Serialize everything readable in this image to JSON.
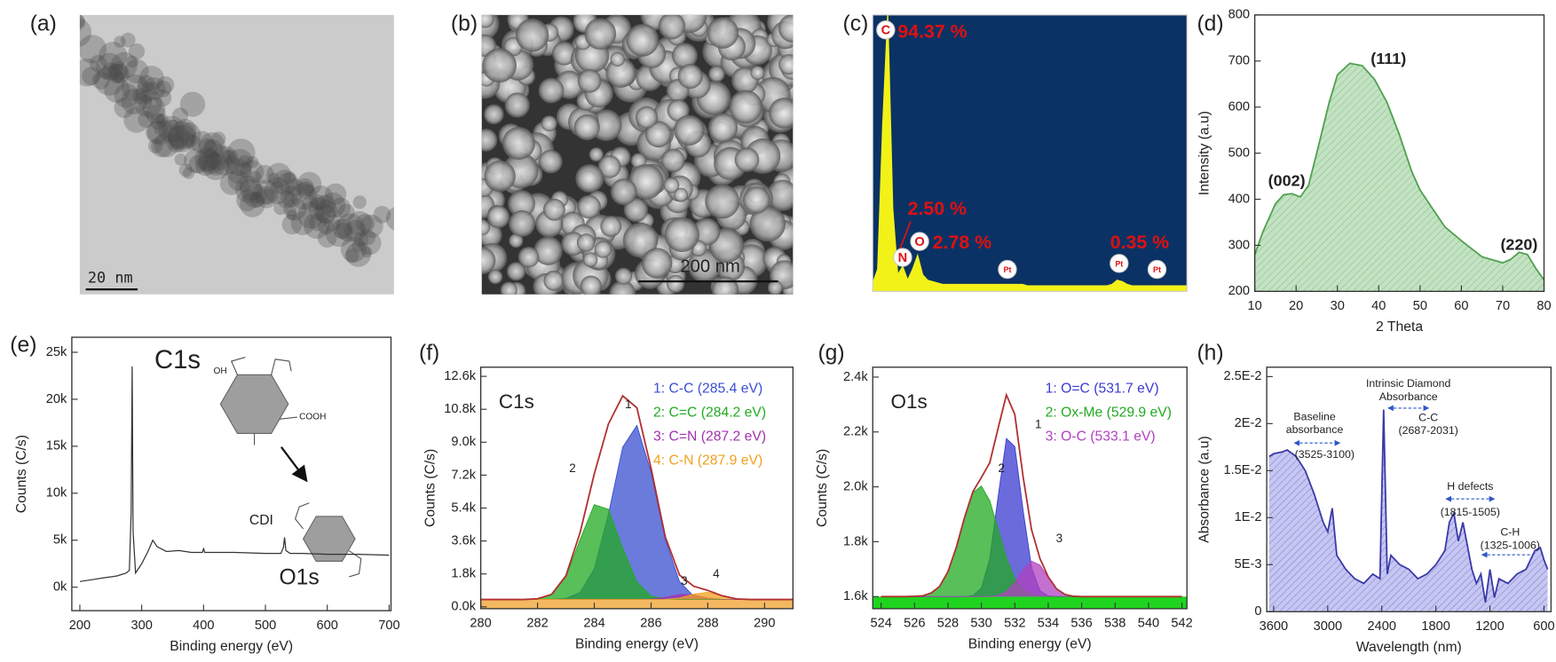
{
  "images": [
    {
      "panel_label": "(a)",
      "scale_bar": "20 nm"
    },
    {
      "panel_label": "(b)",
      "scale_bar": "200 nm"
    }
  ],
  "chart_data": [
    {
      "type": "spectrum",
      "panel_label": "(c)",
      "background": "#0b3265",
      "color": "#f2f218",
      "values": [
        3,
        8,
        60,
        100,
        30,
        6,
        9,
        4,
        8,
        13,
        6,
        4,
        3.5,
        3,
        2.5,
        2.5,
        2.5,
        2.5,
        2.5,
        2.5,
        2.5,
        2.5,
        2.5,
        2.5,
        2.5,
        2.5,
        2.5,
        2.5,
        2.5,
        2.5,
        2.5,
        2,
        2,
        2,
        2,
        2,
        2,
        2,
        2,
        2,
        2,
        2,
        2,
        2,
        2,
        2,
        2,
        2,
        2.5,
        4,
        3.5,
        2.5,
        2,
        2,
        2,
        2,
        2,
        2,
        2,
        2,
        2,
        2,
        2,
        2
      ],
      "peaks": [
        {
          "element": "C",
          "label": "94.37 %"
        },
        {
          "element": "N",
          "label": "2.50 %"
        },
        {
          "element": "O",
          "label": "2.78 %"
        },
        {
          "element": "Pt"
        },
        {
          "element": "Pt",
          "label": "0.35 %"
        },
        {
          "element": "Pt"
        }
      ]
    },
    {
      "type": "area",
      "panel_label": "(d)",
      "x_label": "2 Theta",
      "y_label": "Intensity (a.u)",
      "x": [
        10,
        12,
        15,
        17,
        19,
        21,
        23,
        25,
        28,
        30,
        33,
        36,
        39,
        42,
        45,
        48,
        50,
        53,
        56,
        60,
        65,
        70,
        72,
        74,
        76,
        78,
        80
      ],
      "values": [
        280,
        330,
        390,
        410,
        412,
        405,
        430,
        500,
        610,
        670,
        695,
        690,
        660,
        610,
        540,
        460,
        420,
        380,
        340,
        310,
        275,
        262,
        270,
        285,
        280,
        250,
        225
      ],
      "color": "#4fa04f",
      "fill": "#c3e2c3",
      "xlim": [
        10,
        80
      ],
      "ylim": [
        200,
        800
      ],
      "xticks": [
        10,
        20,
        30,
        40,
        50,
        60,
        70,
        80
      ],
      "yticks": [
        200,
        300,
        400,
        500,
        600,
        700,
        800
      ],
      "annotations": [
        "(002)",
        "(111)",
        "(220)"
      ]
    },
    {
      "type": "line",
      "panel_label": "(e)",
      "x_label": "Binding energy (eV)",
      "y_label": "Counts (C/s)",
      "x": [
        200,
        220,
        240,
        260,
        275,
        280,
        283,
        284.5,
        286,
        290,
        300,
        310,
        318,
        325,
        340,
        360,
        380,
        398,
        400,
        402,
        420,
        450,
        500,
        525,
        529,
        531,
        533,
        540,
        560,
        600,
        650,
        700
      ],
      "values": [
        600,
        800,
        1000,
        1200,
        1500,
        1800,
        8000,
        23500,
        6000,
        1500,
        2500,
        3800,
        5000,
        4300,
        3800,
        3900,
        3700,
        3700,
        4100,
        3700,
        3700,
        3700,
        3600,
        3600,
        4200,
        5300,
        3900,
        3600,
        3600,
        3500,
        3500,
        3400
      ],
      "color": "#333333",
      "xlim": [
        187,
        703
      ],
      "ylim": [
        -2500,
        26600
      ],
      "xticks": [
        200,
        300,
        400,
        500,
        600,
        700
      ],
      "yticks": [
        {
          "value": 0,
          "label": "0k"
        },
        {
          "value": 5000,
          "label": "5k"
        },
        {
          "value": 10000,
          "label": "10k"
        },
        {
          "value": 15000,
          "label": "15k"
        },
        {
          "value": 20000,
          "label": "20k"
        },
        {
          "value": 25000,
          "label": "25k"
        }
      ],
      "annotations": [
        "C1s",
        "O1s"
      ],
      "schematic_labels": [
        "OH",
        "COOH",
        "CDI"
      ]
    },
    {
      "type": "peak_fit",
      "panel_label": "(f)",
      "title": "C1s",
      "x_label": "Binding energy (eV)",
      "y_label": "Counts (C/s)",
      "x": [
        280,
        280.5,
        281,
        281.5,
        282,
        282.5,
        283,
        283.5,
        284,
        284.5,
        285,
        285.5,
        286,
        286.5,
        287,
        287.5,
        288,
        288.5,
        289,
        289.5,
        290,
        290.5,
        291
      ],
      "series": [
        {
          "name": "1: C-C (285.4 eV)",
          "color": "#3a4fd0",
          "values": [
            400,
            400,
            400,
            400,
            400,
            405,
            457,
            788,
            2083,
            5072,
            8725,
            9915,
            7370,
            3675,
            1386,
            590,
            424,
            402,
            400,
            400,
            400,
            400,
            400
          ]
        },
        {
          "name": "2: C=C (284.2 eV)",
          "color": "#22aa22",
          "values": [
            400,
            400,
            400,
            403,
            439,
            683,
            1643,
            3675,
            5584,
            5326,
            3210,
            1363,
            598,
            424,
            400,
            400,
            400,
            400,
            400,
            400,
            400,
            400,
            400
          ]
        },
        {
          "name": "3: C=N (287.2 eV)",
          "color": "#a030b0",
          "values": [
            400,
            400,
            400,
            400,
            400,
            400,
            400,
            400,
            400,
            400,
            400,
            400,
            417,
            513,
            677,
            650,
            483,
            410,
            400,
            400,
            400,
            400,
            400
          ]
        },
        {
          "name": "4: C-N (287.9 eV)",
          "color": "#f0a020",
          "values": [
            400,
            400,
            400,
            400,
            400,
            400,
            400,
            400,
            400,
            400,
            400,
            400,
            400,
            408,
            479,
            690,
            792,
            595,
            436,
            402,
            400,
            400,
            400
          ]
        }
      ],
      "envelope": {
        "color": "#b03030",
        "values": [
          400,
          400,
          400,
          403,
          439,
          688,
          1700,
          4063,
          7267,
          9998,
          11535,
          10878,
          7585,
          3820,
          1742,
          1130,
          899,
          607,
          436,
          402,
          400,
          400,
          400
        ]
      },
      "baseline": 400,
      "baseline_color": "#f4b860",
      "xlim": [
        280,
        291
      ],
      "ylim": [
        -100,
        13100
      ],
      "xticks": [
        280,
        282,
        284,
        286,
        288,
        290
      ],
      "yticks": [
        {
          "value": 0,
          "label": "0.0k"
        },
        {
          "value": 1800,
          "label": "1.8k"
        },
        {
          "value": 3600,
          "label": "3.6k"
        },
        {
          "value": 5400,
          "label": "5.4k"
        },
        {
          "value": 7200,
          "label": "7.2k"
        },
        {
          "value": 9000,
          "label": "9.0k"
        },
        {
          "value": 10800,
          "label": "10.8k"
        },
        {
          "value": 12600,
          "label": "12.6k"
        }
      ],
      "peak_labels": [
        "1",
        "2",
        "3",
        "4"
      ]
    },
    {
      "type": "peak_fit",
      "panel_label": "(g)",
      "title": "O1s",
      "x_label": "Binding energy (eV)",
      "y_label": "Counts (C/s)",
      "x": [
        524,
        524.5,
        525,
        525.5,
        526,
        526.5,
        527,
        527.5,
        528,
        528.5,
        529,
        529.5,
        530,
        530.5,
        531,
        531.5,
        532,
        532.5,
        533,
        533.5,
        534,
        534.5,
        535,
        535.5,
        536,
        536.5,
        537,
        537.5,
        538,
        538.5,
        539,
        539.5,
        540,
        540.5,
        541,
        541.5,
        542
      ],
      "series": [
        {
          "name": "1: O=C (531.7 eV)",
          "color": "#3a3ad0",
          "values": [
            1600,
            1600,
            1600,
            1600,
            1600,
            1600,
            1600,
            1600,
            1600,
            1600,
            1600,
            1604,
            1631,
            1738,
            1964,
            2176,
            2147,
            1912,
            1707,
            1622,
            1603,
            1600,
            1600,
            1600,
            1600,
            1600,
            1600,
            1600,
            1600,
            1600,
            1600,
            1600,
            1600,
            1600,
            1600,
            1600,
            1600
          ]
        },
        {
          "name": "2: Ox-Me (529.9 eV)",
          "color": "#22aa22",
          "values": [
            1600,
            1600,
            1600,
            1600,
            1601,
            1603,
            1613,
            1637,
            1691,
            1780,
            1890,
            1979,
            2003,
            1949,
            1846,
            1741,
            1666,
            1625,
            1608,
            1602,
            1600,
            1600,
            1600,
            1600,
            1600,
            1600,
            1600,
            1600,
            1600,
            1600,
            1600,
            1600,
            1600,
            1600,
            1600,
            1600,
            1600
          ]
        },
        {
          "name": "3: O-C (533.1 eV)",
          "color": "#b040c0",
          "values": [
            1600,
            1600,
            1600,
            1600,
            1600,
            1600,
            1600,
            1600,
            1600,
            1600,
            1600,
            1600,
            1600,
            1601,
            1604,
            1618,
            1651,
            1698,
            1729,
            1715,
            1669,
            1628,
            1608,
            1601,
            1600,
            1600,
            1600,
            1600,
            1600,
            1600,
            1600,
            1600,
            1600,
            1600,
            1600,
            1600,
            1600
          ]
        }
      ],
      "envelope": {
        "color": "#b03030",
        "values": [
          1600,
          1600,
          1600,
          1600,
          1601,
          1603,
          1613,
          1637,
          1691,
          1780,
          1890,
          1983,
          2034,
          2088,
          2214,
          2335,
          2264,
          2035,
          1844,
          1739,
          1672,
          1628,
          1608,
          1601,
          1600,
          1600,
          1600,
          1600,
          1600,
          1600,
          1600,
          1600,
          1600,
          1600,
          1600,
          1600,
          1600
        ]
      },
      "baseline": 1600,
      "baseline_color": "#1fd31f",
      "xlim": [
        523.5,
        542.3
      ],
      "ylim": [
        1556,
        2436
      ],
      "xticks": [
        524,
        526,
        528,
        530,
        532,
        534,
        536,
        538,
        540,
        542
      ],
      "yticks": [
        {
          "value": 1600,
          "label": "1.6k"
        },
        {
          "value": 1800,
          "label": "1.8k"
        },
        {
          "value": 2000,
          "label": "2.0k"
        },
        {
          "value": 2200,
          "label": "2.2k"
        },
        {
          "value": 2400,
          "label": "2.4k"
        }
      ],
      "peak_labels": [
        "1",
        "2",
        "3"
      ]
    },
    {
      "type": "area",
      "panel_label": "(h)",
      "x_label": "Wavelength (nm)",
      "y_label": "Absorbance (a.u)",
      "x": [
        3650,
        3600,
        3500,
        3450,
        3350,
        3250,
        3150,
        3050,
        3000,
        2950,
        2900,
        2800,
        2700,
        2600,
        2500,
        2420,
        2380,
        2340,
        2300,
        2200,
        2100,
        2000,
        1900,
        1800,
        1700,
        1650,
        1600,
        1550,
        1500,
        1450,
        1400,
        1350,
        1300,
        1250,
        1200,
        1150,
        1100,
        1000,
        900,
        800,
        700,
        640,
        600,
        560
      ],
      "values": [
        0.0165,
        0.0168,
        0.017,
        0.0172,
        0.0165,
        0.015,
        0.0125,
        0.0095,
        0.0085,
        0.011,
        0.006,
        0.0045,
        0.0035,
        0.003,
        0.004,
        0.0035,
        0.0215,
        0.004,
        0.006,
        0.005,
        0.0045,
        0.0035,
        0.004,
        0.005,
        0.0065,
        0.0095,
        0.0105,
        0.0075,
        0.0095,
        0.007,
        0.0045,
        0.003,
        0.004,
        0.001,
        0.0045,
        0.0015,
        0.0035,
        0.003,
        0.004,
        0.0045,
        0.0065,
        0.0068,
        0.0055,
        0.0045
      ],
      "color": "#3a3aa8",
      "fill": "#c6c6f2",
      "xlim": [
        3677,
        522
      ],
      "ylim": [
        0,
        0.026
      ],
      "xticks": [
        3600,
        3000,
        2400,
        1800,
        1200,
        600
      ],
      "yticks": [
        0,
        {
          "value": 0.005,
          "label": "5E-3"
        },
        {
          "value": 0.01,
          "label": "1E-2"
        },
        {
          "value": 0.015,
          "label": "1.5E-2"
        },
        {
          "value": 0.02,
          "label": "2E-2"
        },
        {
          "value": 0.025,
          "label": "2.5E-2"
        }
      ],
      "annotations": [
        "Intrinsic Diamond",
        "Absorbance",
        "C-C",
        "(2687-2031)",
        "Baseline",
        "absorbance",
        "(3525-3100)",
        "H defects",
        "(1815-1505)",
        "C-H",
        "(1325-1006)"
      ]
    }
  ]
}
